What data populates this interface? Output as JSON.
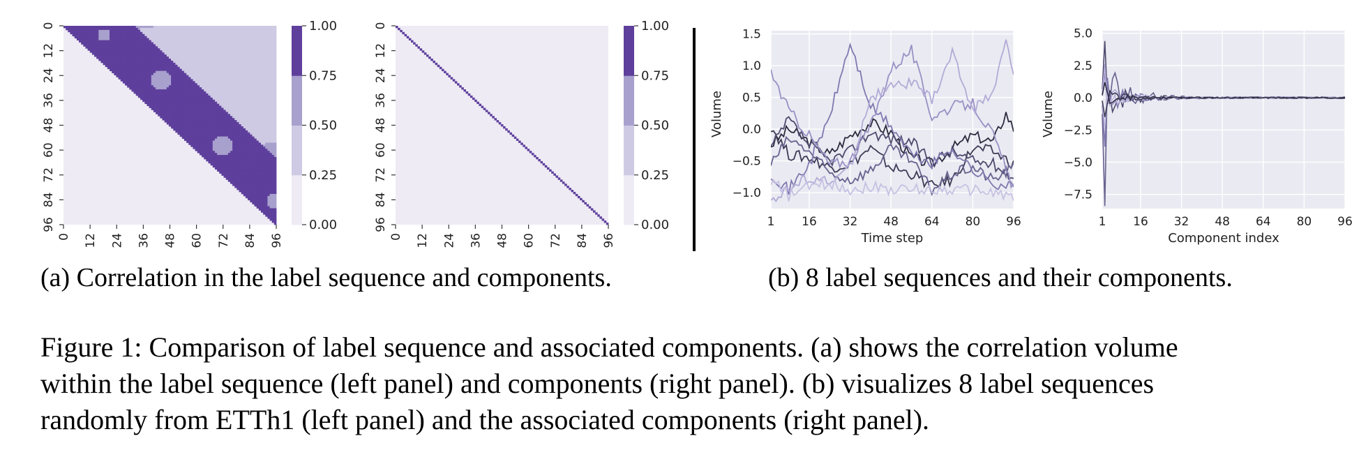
{
  "subcaptions": {
    "a": "(a) Correlation in the label sequence and components.",
    "b": "(b) 8 label sequences and their components."
  },
  "figure_caption": {
    "line1": "Figure 1: Comparison of label sequence and associated components. (a) shows the correlation volume",
    "line2": "within the label sequence (left panel) and components (right panel). (b) visualizes 8 label sequences",
    "line3": "randomly from ETTh1 (left panel) and the associated components (right panel)."
  },
  "colors": {
    "level0": "#eeebf5",
    "level1": "#cfcae4",
    "level2": "#a8a0cd",
    "level3": "#5e3f9c",
    "line_panel_bg": "#eaeaf2",
    "series_palette": [
      "#2d2a3e",
      "#3d3a55",
      "#4e4a6e",
      "#67618e",
      "#8078b0",
      "#9990c4",
      "#b2aad6",
      "#c6c0e2"
    ]
  },
  "chart_data": [
    {
      "type": "heatmap",
      "panel": "label-sequence-correlation",
      "size": 97,
      "xticks": [
        "0",
        "12",
        "24",
        "36",
        "48",
        "60",
        "72",
        "84",
        "96"
      ],
      "yticks": [
        "0",
        "12",
        "24",
        "36",
        "48",
        "60",
        "72",
        "84",
        "96"
      ],
      "triangle": "upper",
      "near_diagonal_band_value": 0.9,
      "band_width": 32,
      "far_region_value": 0.3,
      "colorbar_levels": [
        0.0,
        0.25,
        0.5,
        0.75,
        1.0
      ],
      "colorbar_ticks": [
        "1.00",
        "0.75",
        "0.50",
        "0.25",
        "0.00"
      ]
    },
    {
      "type": "heatmap",
      "panel": "component-correlation",
      "size": 97,
      "xticks": [
        "0",
        "12",
        "24",
        "36",
        "48",
        "60",
        "72",
        "84",
        "96"
      ],
      "yticks": [
        "0",
        "12",
        "24",
        "36",
        "48",
        "60",
        "72",
        "84",
        "96"
      ],
      "diagonal_value": 1.0,
      "off_diagonal_value": 0.0,
      "colorbar_levels": [
        0.0,
        0.25,
        0.5,
        0.75,
        1.0
      ],
      "colorbar_ticks": [
        "1.00",
        "0.75",
        "0.50",
        "0.25",
        "0.00"
      ]
    },
    {
      "type": "line",
      "panel": "label-sequences",
      "xlabel": "Time step",
      "ylabel": "Volume",
      "xlim": [
        1,
        96
      ],
      "ylim": [
        -1.25,
        1.55
      ],
      "xticks": [
        1,
        16,
        32,
        48,
        64,
        80,
        96
      ],
      "yticks": [
        1.5,
        1.0,
        0.5,
        0.0,
        -0.5,
        -1.0
      ],
      "ytick_labels": [
        "1.5",
        "1.0",
        "0.5",
        "0.0",
        "−0.5",
        "−1.0"
      ],
      "grid": true,
      "series": [
        {
          "start": -0.25,
          "end": 0.0,
          "points": [
            [
              1,
              -0.25
            ],
            [
              8,
              0.0
            ],
            [
              16,
              -0.2
            ],
            [
              24,
              -0.4
            ],
            [
              32,
              -0.1
            ],
            [
              40,
              0.1
            ],
            [
              48,
              -0.05
            ],
            [
              56,
              -0.45
            ],
            [
              64,
              -0.55
            ],
            [
              72,
              -0.3
            ],
            [
              80,
              -0.1
            ],
            [
              88,
              -0.2
            ],
            [
              93,
              0.25
            ],
            [
              96,
              0.0
            ]
          ]
        },
        {
          "points": [
            [
              1,
              0.05
            ],
            [
              8,
              -0.4
            ],
            [
              16,
              -0.45
            ],
            [
              24,
              -0.6
            ],
            [
              32,
              -0.55
            ],
            [
              40,
              -0.3
            ],
            [
              48,
              -0.6
            ],
            [
              56,
              -0.7
            ],
            [
              64,
              -0.9
            ],
            [
              72,
              -0.8
            ],
            [
              80,
              -0.3
            ],
            [
              88,
              -0.35
            ],
            [
              96,
              -0.55
            ]
          ]
        },
        {
          "points": [
            [
              1,
              -0.3
            ],
            [
              8,
              0.15
            ],
            [
              16,
              -0.25
            ],
            [
              24,
              -0.5
            ],
            [
              32,
              -0.35
            ],
            [
              40,
              -0.05
            ],
            [
              48,
              -0.15
            ],
            [
              56,
              -0.2
            ],
            [
              64,
              -0.5
            ],
            [
              72,
              -0.35
            ],
            [
              80,
              -0.5
            ],
            [
              88,
              -0.55
            ],
            [
              96,
              -0.75
            ]
          ]
        },
        {
          "points": [
            [
              1,
              -0.55
            ],
            [
              8,
              -0.15
            ],
            [
              16,
              -0.35
            ],
            [
              24,
              -0.7
            ],
            [
              32,
              -0.8
            ],
            [
              40,
              -0.65
            ],
            [
              48,
              -0.3
            ],
            [
              56,
              -0.5
            ],
            [
              64,
              -0.95
            ],
            [
              72,
              -0.7
            ],
            [
              80,
              -0.6
            ],
            [
              88,
              -0.8
            ],
            [
              96,
              -0.6
            ]
          ]
        },
        {
          "points": [
            [
              1,
              -0.7
            ],
            [
              8,
              -0.95
            ],
            [
              16,
              -0.55
            ],
            [
              24,
              0.2
            ],
            [
              32,
              1.35
            ],
            [
              40,
              0.35
            ],
            [
              48,
              0.05
            ],
            [
              56,
              -0.4
            ],
            [
              64,
              -0.55
            ],
            [
              72,
              -0.3
            ],
            [
              80,
              -0.65
            ],
            [
              88,
              -0.85
            ],
            [
              96,
              -0.9
            ]
          ]
        },
        {
          "points": [
            [
              1,
              0.9
            ],
            [
              8,
              0.3
            ],
            [
              16,
              -0.1
            ],
            [
              24,
              -0.55
            ],
            [
              32,
              -0.5
            ],
            [
              40,
              0.05
            ],
            [
              48,
              0.95
            ],
            [
              56,
              1.25
            ],
            [
              64,
              0.2
            ],
            [
              72,
              0.35
            ],
            [
              80,
              0.4
            ],
            [
              88,
              -0.1
            ],
            [
              96,
              -0.95
            ]
          ]
        },
        {
          "points": [
            [
              1,
              -1.1
            ],
            [
              8,
              -0.95
            ],
            [
              16,
              -0.75
            ],
            [
              24,
              -0.85
            ],
            [
              32,
              -0.6
            ],
            [
              40,
              0.5
            ],
            [
              48,
              0.65
            ],
            [
              56,
              0.75
            ],
            [
              64,
              0.45
            ],
            [
              72,
              1.2
            ],
            [
              80,
              0.3
            ],
            [
              88,
              0.6
            ],
            [
              93,
              1.4
            ],
            [
              96,
              0.85
            ]
          ]
        },
        {
          "points": [
            [
              1,
              -0.8
            ],
            [
              8,
              -1.05
            ],
            [
              16,
              -0.9
            ],
            [
              24,
              -0.85
            ],
            [
              32,
              -0.95
            ],
            [
              40,
              -0.9
            ],
            [
              48,
              -0.95
            ],
            [
              56,
              -0.95
            ],
            [
              64,
              -0.95
            ],
            [
              72,
              -0.95
            ],
            [
              80,
              -0.95
            ],
            [
              88,
              -1.0
            ],
            [
              96,
              -1.05
            ]
          ]
        }
      ]
    },
    {
      "type": "line",
      "panel": "components",
      "xlabel": "Component index",
      "ylabel": "Volume",
      "xlim": [
        1,
        96
      ],
      "ylim": [
        -8.6,
        5.2
      ],
      "xticks": [
        1,
        16,
        32,
        48,
        64,
        80,
        96
      ],
      "yticks": [
        5.0,
        2.5,
        0.0,
        -2.5,
        -5.0,
        -7.5
      ],
      "ytick_labels": [
        "5.0",
        "2.5",
        "0.0",
        "−2.5",
        "−5.0",
        "−7.5"
      ],
      "grid": true,
      "series_count": 8,
      "first_component_peaks": [
        4.4,
        -8.4,
        -3.8,
        1.9,
        2.6,
        -2.2,
        1.2,
        -1.5
      ],
      "decay_scale": 8
    }
  ]
}
